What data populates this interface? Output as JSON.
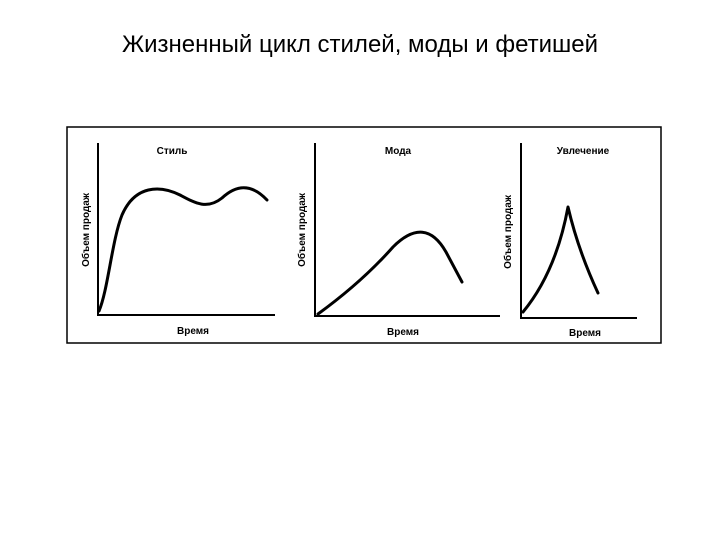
{
  "header": {
    "title": "Жизненный цикл стилей, моды и фетишей"
  },
  "panels": [
    {
      "title": "Стиль",
      "x_label": "Время",
      "y_label": "Объем продаж"
    },
    {
      "title": "Мода",
      "x_label": "Время",
      "y_label": "Объем продаж"
    },
    {
      "title": "Увлечение",
      "x_label": "Время",
      "y_label": "Объем продаж"
    }
  ]
}
